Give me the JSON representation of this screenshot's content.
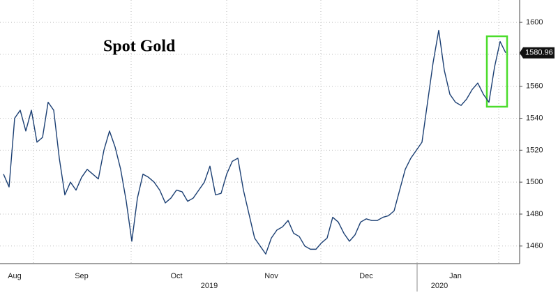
{
  "chart_data": {
    "type": "line",
    "title": "Spot Gold",
    "categories": [
      null,
      null,
      "Aug",
      null,
      null,
      null,
      null,
      null,
      null,
      null,
      null,
      null,
      null,
      null,
      "Sep",
      null,
      null,
      null,
      null,
      null,
      null,
      null,
      null,
      null,
      null,
      null,
      null,
      null,
      null,
      null,
      null,
      "Oct",
      null,
      null,
      null,
      null,
      null,
      null,
      null,
      null,
      null,
      null,
      null,
      null,
      null,
      null,
      null,
      null,
      "Nov",
      null,
      null,
      null,
      null,
      null,
      null,
      null,
      null,
      null,
      null,
      null,
      null,
      null,
      null,
      null,
      null,
      "Dec",
      null,
      null,
      null,
      null,
      null,
      null,
      null,
      null,
      null,
      null,
      null,
      null,
      null,
      null,
      null,
      "Jan",
      null,
      null,
      null,
      null,
      null,
      null,
      null,
      null,
      null
    ],
    "years": [
      "2019",
      "2020"
    ],
    "series": [
      {
        "name": "Spot Gold",
        "color": "#1b3f73",
        "values": [
          1505,
          1497,
          1540,
          1545,
          1532,
          1545,
          1525,
          1528,
          1550,
          1545,
          1515,
          1492,
          1500,
          1495,
          1503,
          1508,
          1505,
          1502,
          1520,
          1532,
          1522,
          1508,
          1488,
          1463,
          1490,
          1505,
          1503,
          1500,
          1495,
          1487,
          1490,
          1495,
          1494,
          1488,
          1490,
          1495,
          1500,
          1510,
          1492,
          1493,
          1505,
          1513,
          1515,
          1495,
          1480,
          1465,
          1460,
          1455,
          1465,
          1470,
          1472,
          1476,
          1468,
          1466,
          1460,
          1458,
          1458,
          1462,
          1465,
          1478,
          1475,
          1468,
          1463,
          1467,
          1475,
          1477,
          1476,
          1476,
          1478,
          1479,
          1482,
          1495,
          1508,
          1515,
          1520,
          1525,
          1550,
          1575,
          1595,
          1570,
          1555,
          1550,
          1548,
          1552,
          1558,
          1562,
          1555,
          1550,
          1572,
          1588,
          1580.96
        ]
      }
    ],
    "ylim": [
      1449,
      1614
    ],
    "yticks": [
      1460,
      1480,
      1500,
      1520,
      1540,
      1560,
      1580,
      1600
    ],
    "grid": true
  }
}
